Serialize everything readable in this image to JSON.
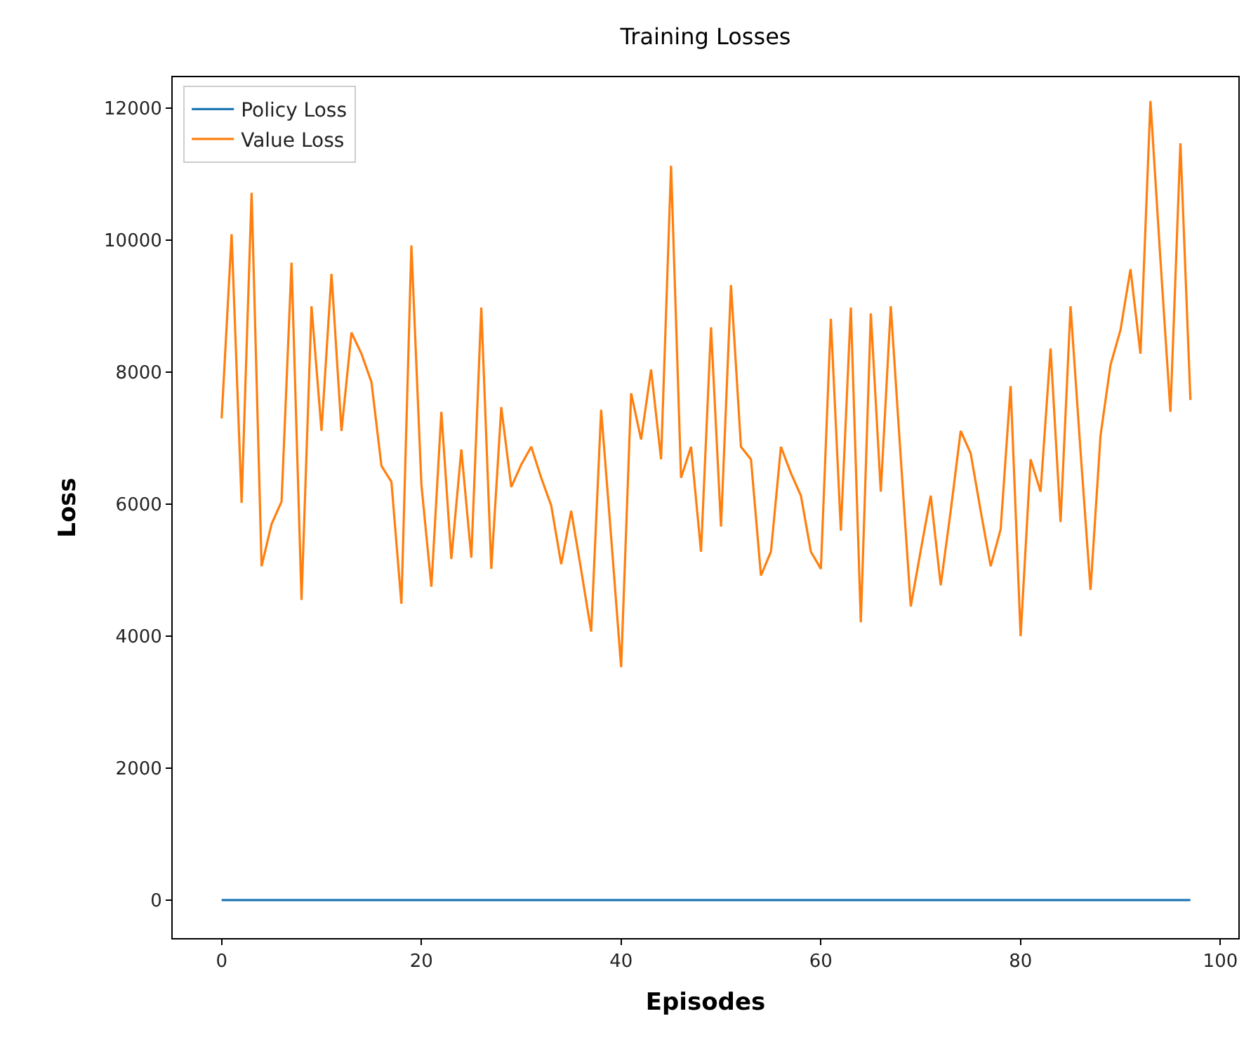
{
  "chart_data": {
    "type": "line",
    "title": "Training Losses",
    "xlabel": "Episodes",
    "ylabel": "Loss",
    "x": [
      0,
      1,
      2,
      3,
      4,
      5,
      6,
      7,
      8,
      9,
      10,
      11,
      12,
      13,
      14,
      15,
      16,
      17,
      18,
      19,
      20,
      21,
      22,
      23,
      24,
      25,
      26,
      27,
      28,
      29,
      30,
      31,
      32,
      33,
      34,
      35,
      36,
      37,
      38,
      39,
      40,
      41,
      42,
      43,
      44,
      45,
      46,
      47,
      48,
      49,
      50,
      51,
      52,
      53,
      54,
      55,
      56,
      57,
      58,
      59,
      60,
      61,
      62,
      63,
      64,
      65,
      66,
      67,
      68,
      69,
      70,
      71,
      72,
      73,
      74,
      75,
      76,
      77,
      78,
      79,
      80,
      81,
      82,
      83,
      84,
      85,
      86,
      87,
      88,
      89,
      90,
      91,
      92,
      93,
      94,
      95,
      96,
      97
    ],
    "series": [
      {
        "name": "Policy Loss",
        "color": "#1f77b4",
        "values": [
          0,
          0,
          0,
          0,
          0,
          0,
          0,
          0,
          0,
          0,
          0,
          0,
          0,
          0,
          0,
          0,
          0,
          0,
          0,
          0,
          0,
          0,
          0,
          0,
          0,
          0,
          0,
          0,
          0,
          0,
          0,
          0,
          0,
          0,
          0,
          0,
          0,
          0,
          0,
          0,
          0,
          0,
          0,
          0,
          0,
          0,
          0,
          0,
          0,
          0,
          0,
          0,
          0,
          0,
          0,
          0,
          0,
          0,
          0,
          0,
          0,
          0,
          0,
          0,
          0,
          0,
          0,
          0,
          0,
          0,
          0,
          0,
          0,
          0,
          0,
          0,
          0,
          0,
          0,
          0,
          0,
          0,
          0,
          0,
          0,
          0,
          0,
          0,
          0,
          0,
          0,
          0,
          0,
          0,
          0,
          0,
          0,
          0
        ]
      },
      {
        "name": "Value Loss",
        "color": "#ff7f0e",
        "values": [
          7300,
          10090,
          6020,
          10720,
          5060,
          5700,
          6040,
          9660,
          4550,
          9000,
          7110,
          9490,
          7110,
          8600,
          8280,
          7850,
          6580,
          6340,
          4490,
          9920,
          6300,
          4750,
          7400,
          5170,
          6830,
          5190,
          8980,
          5020,
          7470,
          6260,
          6600,
          6870,
          6400,
          5980,
          5090,
          5900,
          5000,
          4070,
          7430,
          5500,
          3530,
          7680,
          6980,
          8040,
          6680,
          11130,
          6400,
          6870,
          5280,
          8680,
          5660,
          9320,
          6870,
          6680,
          4920,
          5280,
          6870,
          6470,
          6130,
          5280,
          5020,
          8810,
          5600,
          8980,
          4210,
          8890,
          6190,
          9000,
          6700,
          4450,
          5300,
          6130,
          4770,
          5900,
          7110,
          6770,
          5900,
          5060,
          5620,
          7790,
          4000,
          6680,
          6190,
          8360,
          5730,
          9000,
          6800,
          4700,
          7040,
          8110,
          8640,
          9560,
          8280,
          12110,
          9700,
          7400,
          11470,
          7580
        ]
      }
    ],
    "xlim": [
      -4.9,
      101.8
    ],
    "ylim": [
      -575,
      12470
    ],
    "xticks": [
      0,
      20,
      40,
      60,
      80,
      100
    ],
    "yticks": [
      0,
      2000,
      4000,
      6000,
      8000,
      10000,
      12000
    ],
    "legend": "top left",
    "marker": "none",
    "line_style": "solid"
  }
}
